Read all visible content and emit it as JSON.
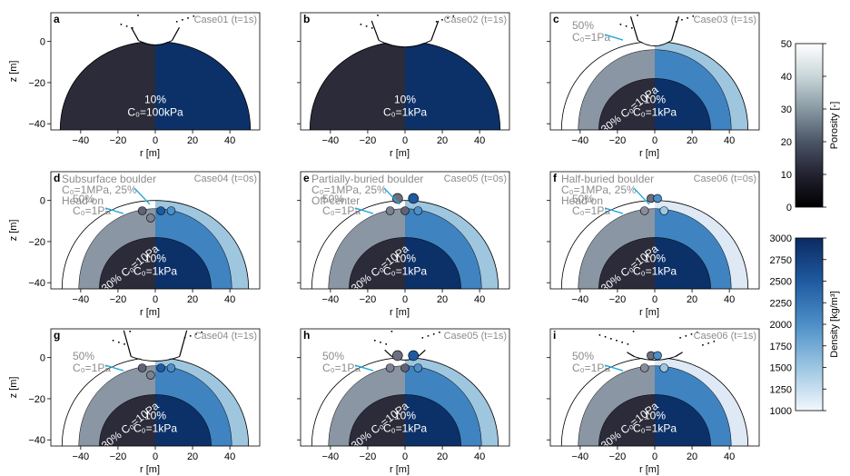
{
  "axis_labels": {
    "r": "r [m]",
    "z": "z [m]"
  },
  "colors": {
    "rock_porosity_dark": "#2b2b3a",
    "rock_density_dark": "#0c3168",
    "layer30_left": "#8a96a3",
    "layer30_right": "#3f83c0",
    "layer50_left": "#ffffff",
    "layer50_right": "#9fc6df",
    "layer50_right_case06": "#dfe9f5",
    "label_grey": "#8c8c8c",
    "arrow_cyan": "#21a9de",
    "outline": "#000000"
  },
  "colorbars": [
    {
      "name": "Porosity [-]",
      "min": 0,
      "max": 50,
      "ticks": [
        "50",
        "40",
        "30",
        "20",
        "10",
        "0"
      ],
      "stops": [
        "#ffffff",
        "#c9d6d9",
        "#8899a3",
        "#4b5566",
        "#222231",
        "#000000"
      ]
    },
    {
      "name": "Density [kg/m³]",
      "min": 1000,
      "max": 3000,
      "ticks": [
        "3000",
        "2750",
        "2500",
        "2250",
        "2000",
        "1750",
        "1500",
        "1250",
        "1000"
      ],
      "stops": [
        "#0b2a61",
        "#1f5aa0",
        "#4d8fc8",
        "#9cc6e2",
        "#f2f7fc"
      ]
    }
  ],
  "chart_data": [
    {
      "type": "heatmap",
      "panel": "a",
      "title": "Case01 (t=1s)",
      "xticks": [
        "−40",
        "−20",
        "0",
        "20",
        "40"
      ],
      "yticks": [
        "0",
        "−20",
        "−40"
      ],
      "xlim": [
        -56,
        56
      ],
      "ylim": [
        -43,
        14
      ],
      "layers": 1,
      "label_core": "10%",
      "label_core_c0": "C₀=100kPa",
      "layer50_color_right": "#9fc6df",
      "boulders": "none",
      "crater": "case01",
      "overlay_lines": []
    },
    {
      "type": "heatmap",
      "panel": "b",
      "title": "Case02 (t=1s)",
      "xticks": [
        "−40",
        "−20",
        "0",
        "20",
        "40"
      ],
      "yticks": [],
      "xlim": [
        -56,
        56
      ],
      "ylim": [
        -43,
        14
      ],
      "layers": 1,
      "label_core": "10%",
      "label_core_c0": "C₀=1kPa",
      "layer50_color_right": "#9fc6df",
      "boulders": "none",
      "crater": "case02",
      "overlay_lines": []
    },
    {
      "type": "heatmap",
      "panel": "c",
      "title": "Case03 (t=1s)",
      "xticks": [
        "−40",
        "−20",
        "0",
        "20",
        "40"
      ],
      "yticks": [],
      "xlim": [
        -56,
        56
      ],
      "ylim": [
        -43,
        14
      ],
      "layers": 3,
      "label_core": "10%",
      "label_core_c0": "C₀=1kPa",
      "label_30": "30% C₀=10Pa",
      "label_50": "50%",
      "label_50_c0": "C₀=1Pa",
      "layer50_color_right": "#9fc6df",
      "boulders": "none",
      "crater": "case03",
      "overlay_lines": []
    },
    {
      "type": "heatmap",
      "panel": "d",
      "title": "Case04 (t=0s)",
      "xticks": [
        "−40",
        "−20",
        "0",
        "20",
        "40"
      ],
      "yticks": [
        "0",
        "−20",
        "−40"
      ],
      "xlim": [
        -56,
        56
      ],
      "ylim": [
        -43,
        14
      ],
      "layers": 3,
      "label_core": "10%",
      "label_core_c0": "C₀=1kPa",
      "label_30": "30% C₀=10Pa",
      "label_50": "50%",
      "label_50_c0": "C₀=1Pa",
      "layer50_color_right": "#9fc6df",
      "boulders": "subsurface",
      "crater": "none",
      "overlay_lines": [
        "Subsurface boulder",
        "C₀=1MPa, 25%",
        "Head-on"
      ]
    },
    {
      "type": "heatmap",
      "panel": "e",
      "title": "Case05 (t=0s)",
      "xticks": [
        "−40",
        "−20",
        "0",
        "20",
        "40"
      ],
      "yticks": [],
      "xlim": [
        -56,
        56
      ],
      "ylim": [
        -43,
        14
      ],
      "layers": 3,
      "label_core": "10%",
      "label_core_c0": "C₀=1kPa",
      "label_30": "30% C₀=10Pa",
      "label_50": "50%",
      "label_50_c0": "C₀=1Pa",
      "layer50_color_right": "#9fc6df",
      "boulders": "partial",
      "crater": "none",
      "overlay_lines": [
        "Partially-buried boulder",
        "C₀=1MPa, 25%",
        "Off-center"
      ]
    },
    {
      "type": "heatmap",
      "panel": "f",
      "title": "Case06 (t=0s)",
      "xticks": [
        "−40",
        "−20",
        "0",
        "20",
        "40"
      ],
      "yticks": [],
      "xlim": [
        -56,
        56
      ],
      "ylim": [
        -43,
        14
      ],
      "layers": 3,
      "label_core": "10%",
      "label_core_c0": "C₀=1kPa",
      "label_30": "30% C₀=10Pa",
      "label_50": "50%",
      "label_50_c0": "C₀=1Pa",
      "layer50_color_right": "#dfe9f5",
      "boulders": "half",
      "crater": "none",
      "overlay_lines": [
        "Half-buried boulder",
        "C₀=1MPa, 25%",
        "Head-on"
      ]
    },
    {
      "type": "heatmap",
      "panel": "g",
      "title": "Case04 (t=1s)",
      "xticks": [
        "−40",
        "−20",
        "0",
        "20",
        "40"
      ],
      "yticks": [
        "0",
        "−20",
        "−40"
      ],
      "xlim": [
        -56,
        56
      ],
      "ylim": [
        -43,
        14
      ],
      "layers": 3,
      "label_core": "10%",
      "label_core_c0": "C₀=1kPa",
      "label_30": "30% C₀=10Pa",
      "label_50": "50%",
      "label_50_c0": "C₀=1Pa",
      "layer50_color_right": "#9fc6df",
      "boulders": "subsurface",
      "crater": "case04",
      "overlay_lines": []
    },
    {
      "type": "heatmap",
      "panel": "h",
      "title": "Case05 (t=1s)",
      "xticks": [
        "−40",
        "−20",
        "0",
        "20",
        "40"
      ],
      "yticks": [],
      "xlim": [
        -56,
        56
      ],
      "ylim": [
        -43,
        14
      ],
      "layers": 3,
      "label_core": "10%",
      "label_core_c0": "C₀=1kPa",
      "label_30": "30% C₀=10Pa",
      "label_50": "50%",
      "label_50_c0": "C₀=1Pa",
      "layer50_color_right": "#9fc6df",
      "boulders": "partial",
      "crater": "case05",
      "overlay_lines": []
    },
    {
      "type": "heatmap",
      "panel": "i",
      "title": "Case06 (t=1s)",
      "xticks": [
        "−40",
        "−20",
        "0",
        "20",
        "40"
      ],
      "yticks": [],
      "xlim": [
        -56,
        56
      ],
      "ylim": [
        -43,
        14
      ],
      "layers": 3,
      "label_core": "10%",
      "label_core_c0": "C₀=1kPa",
      "label_30": "30% C₀=10Pa",
      "label_50": "50%",
      "label_50_c0": "C₀=1Pa",
      "layer50_color_right": "#dfe9f5",
      "boulders": "half",
      "crater": "case06",
      "overlay_lines": []
    }
  ]
}
